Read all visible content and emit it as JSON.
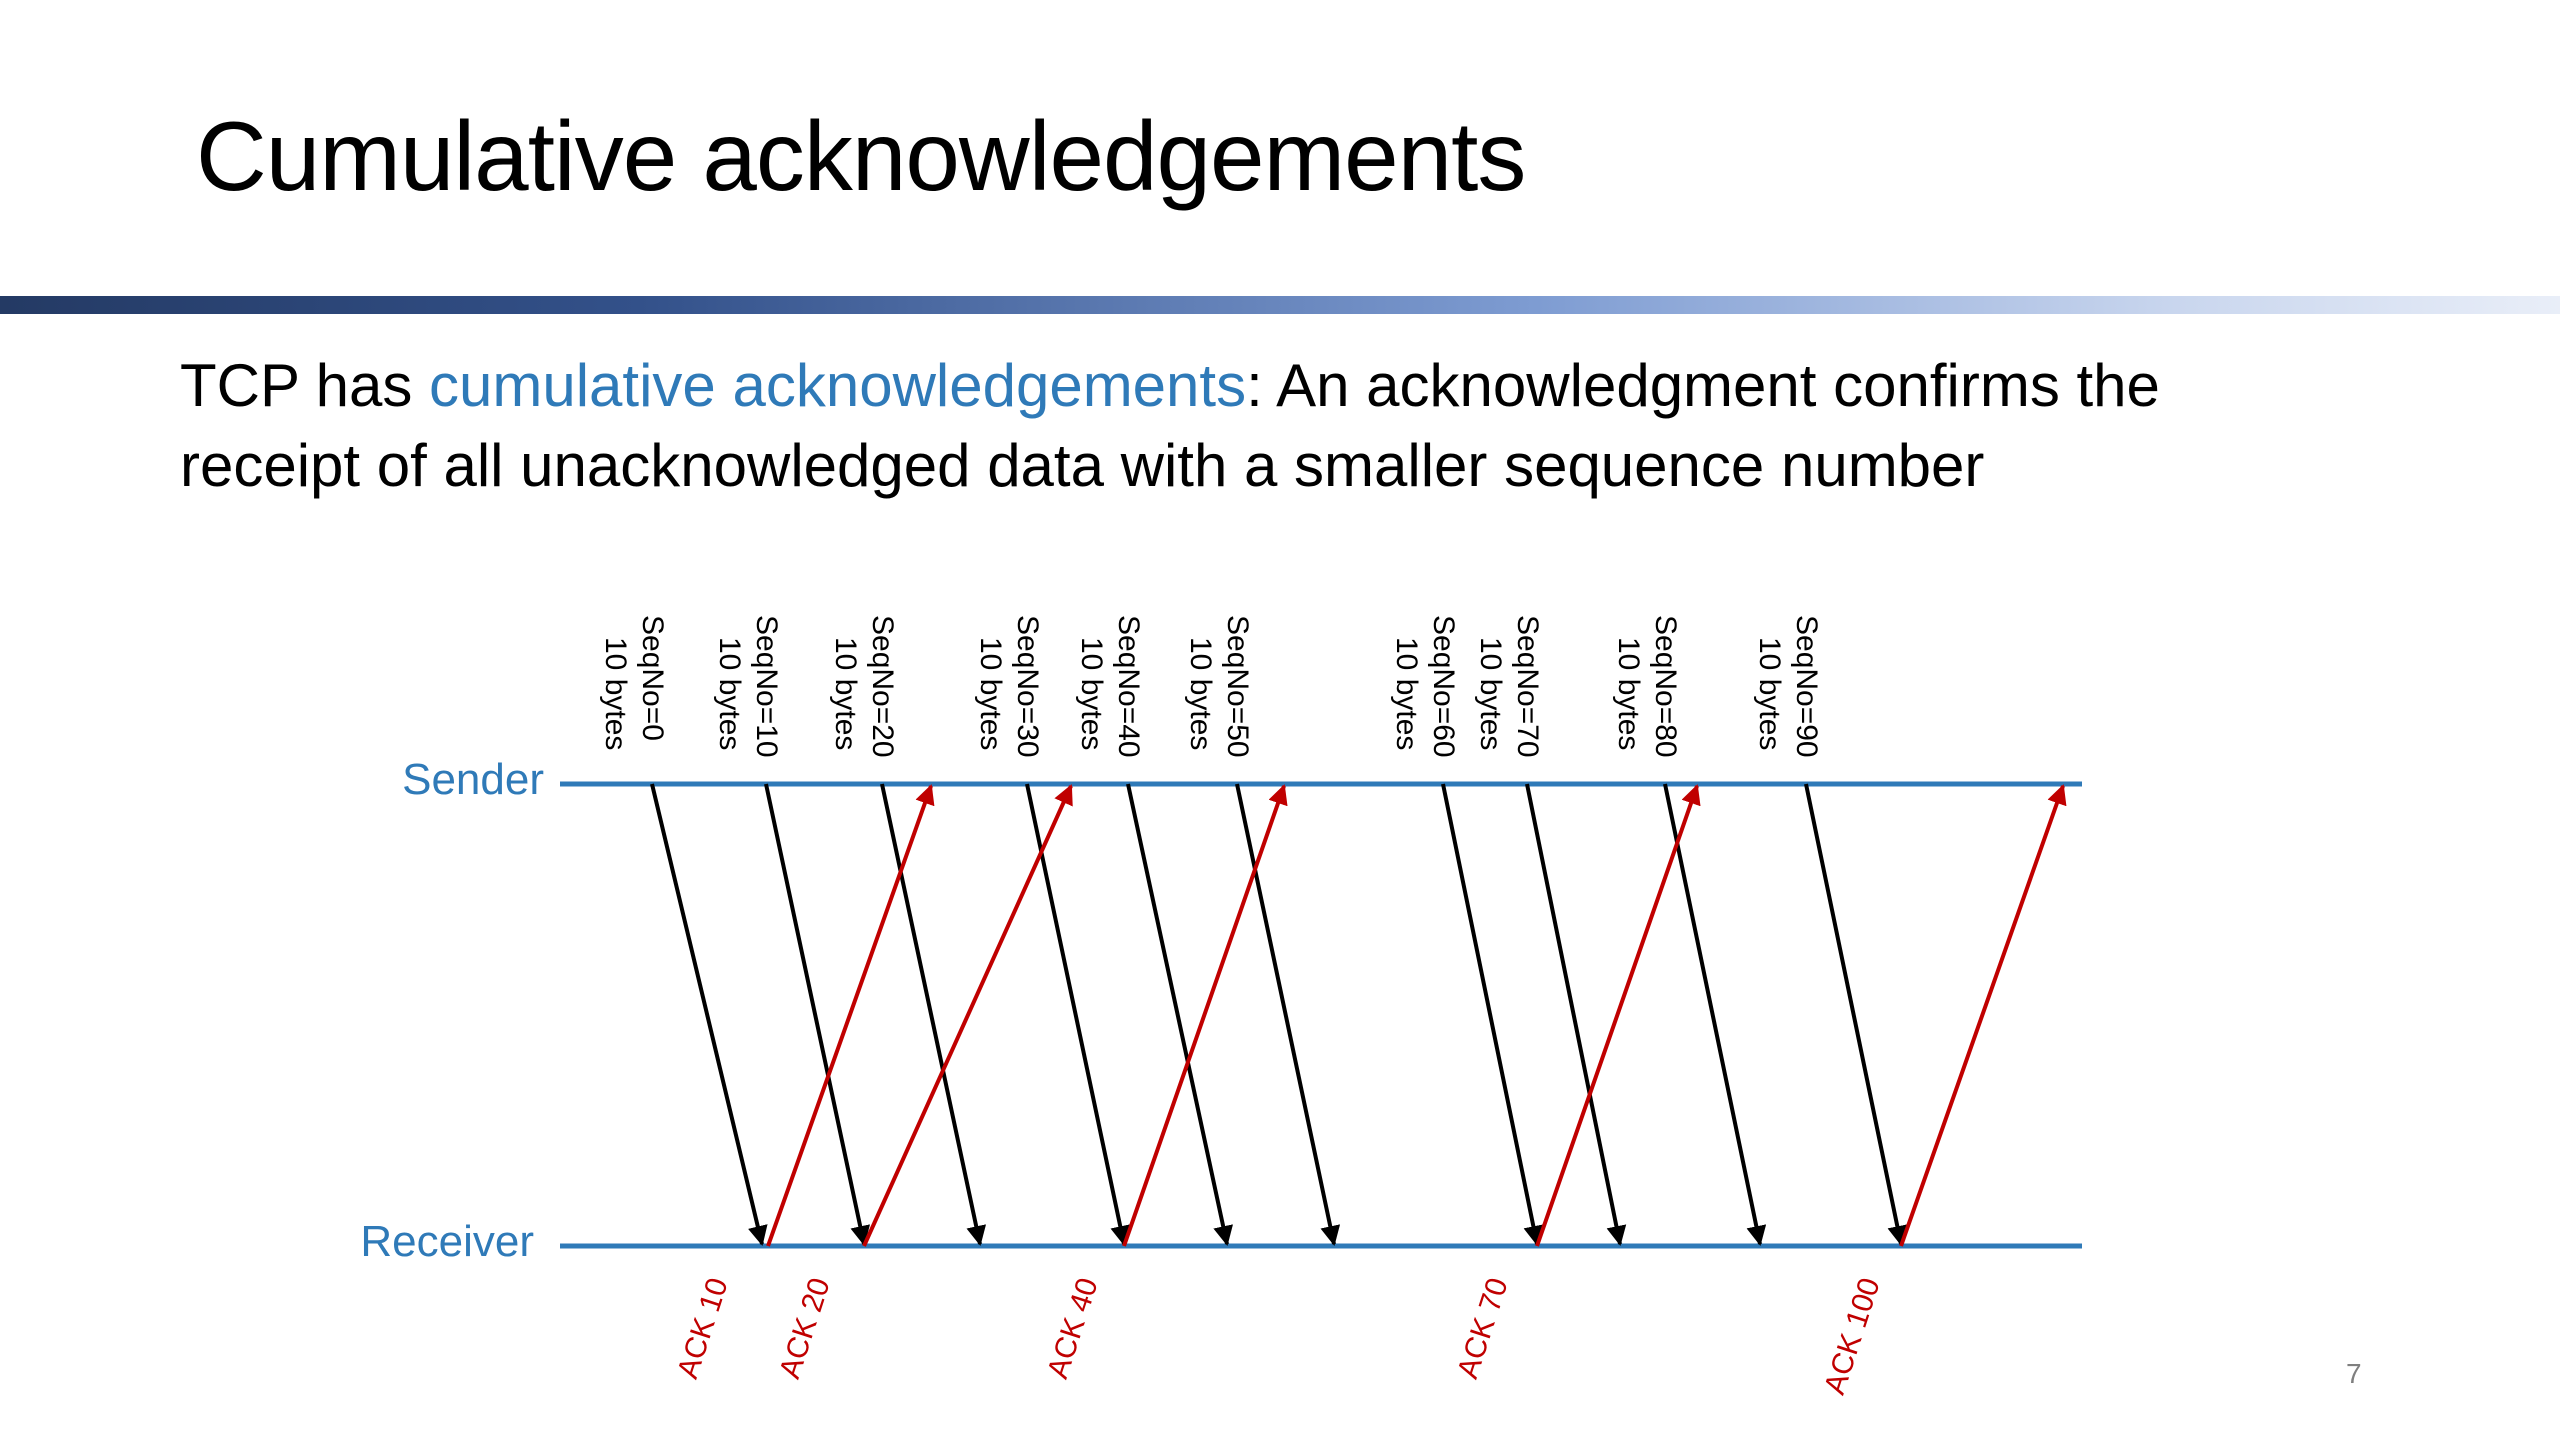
{
  "slide": {
    "title": "Cumulative acknowledgements",
    "body_prefix": "TCP has ",
    "body_highlight": "cumulative acknowledgements",
    "body_line1_rest": ": An acknowledgment confirms the",
    "body_line2": "receipt of all unacknowledged data with a smaller sequence number",
    "page_number": "7"
  },
  "colors": {
    "timeline": "#2f7ab8",
    "data_arrow": "#000000",
    "ack_arrow": "#c00000",
    "highlight": "#2f7ab8"
  },
  "diagram": {
    "sender_label": "Sender",
    "receiver_label": "Receiver",
    "segments": [
      {
        "seq_label": "SeqNo=0",
        "size_label": "10 bytes"
      },
      {
        "seq_label": "SeqNo=10",
        "size_label": "10 bytes"
      },
      {
        "seq_label": "SeqNo=20",
        "size_label": "10 bytes"
      },
      {
        "seq_label": "SeqNo=30",
        "size_label": "10 bytes"
      },
      {
        "seq_label": "SeqNo=40",
        "size_label": "10 bytes"
      },
      {
        "seq_label": "SeqNo=50",
        "size_label": "10 bytes"
      },
      {
        "seq_label": "SeqNo=60",
        "size_label": "10 bytes"
      },
      {
        "seq_label": "SeqNo=70",
        "size_label": "10 bytes"
      },
      {
        "seq_label": "SeqNo=80",
        "size_label": "10 bytes"
      },
      {
        "seq_label": "SeqNo=90",
        "size_label": "10 bytes"
      }
    ],
    "acks": [
      {
        "label": "ACK 10"
      },
      {
        "label": "ACK 20"
      },
      {
        "label": "ACK 40"
      },
      {
        "label": "ACK 70"
      },
      {
        "label": "ACK 100"
      }
    ]
  }
}
